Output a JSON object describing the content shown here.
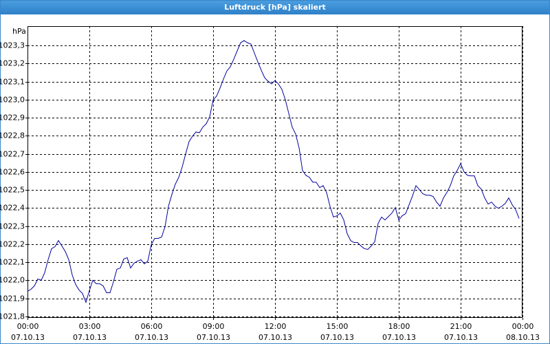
{
  "window_title": "Luftdruck [hPa] skaliert",
  "chart_data": {
    "type": "line",
    "y_label": "hPa",
    "color": "#00009c",
    "grid": true,
    "xlim": [
      0,
      1440
    ],
    "xticks": [
      {
        "value": 0,
        "label": [
          "00:00",
          "07.10.13"
        ]
      },
      {
        "value": 180,
        "label": [
          "03:00",
          "07.10.13"
        ]
      },
      {
        "value": 360,
        "label": [
          "06:00",
          "07.10.13"
        ]
      },
      {
        "value": 540,
        "label": [
          "09:00",
          "07.10.13"
        ]
      },
      {
        "value": 720,
        "label": [
          "12:00",
          "07.10.13"
        ]
      },
      {
        "value": 900,
        "label": [
          "15:00",
          "07.10.13"
        ]
      },
      {
        "value": 1080,
        "label": [
          "18:00",
          "07.10.13"
        ]
      },
      {
        "value": 1260,
        "label": [
          "21:00",
          "07.10.13"
        ]
      },
      {
        "value": 1440,
        "label": [
          "00:00",
          "08.10.13"
        ]
      }
    ],
    "ylim": [
      1021.792,
      1023.407
    ],
    "yticks": [
      {
        "value": 1021.8,
        "label": "1021,8"
      },
      {
        "value": 1021.9,
        "label": "1021,9"
      },
      {
        "value": 1022.0,
        "label": "1022,0"
      },
      {
        "value": 1022.1,
        "label": "1022,1"
      },
      {
        "value": 1022.2,
        "label": "1022,2"
      },
      {
        "value": 1022.3,
        "label": "1022,3"
      },
      {
        "value": 1022.4,
        "label": "1022,4"
      },
      {
        "value": 1022.5,
        "label": "1022,5"
      },
      {
        "value": 1022.6,
        "label": "1022,6"
      },
      {
        "value": 1022.7,
        "label": "1022,7"
      },
      {
        "value": 1022.8,
        "label": "1022,8"
      },
      {
        "value": 1022.9,
        "label": "1022,9"
      },
      {
        "value": 1023.0,
        "label": "1023,0"
      },
      {
        "value": 1023.1,
        "label": "1023,1"
      },
      {
        "value": 1023.2,
        "label": "1023,2"
      },
      {
        "value": 1023.3,
        "label": "1023,3"
      }
    ],
    "x": [
      0,
      10,
      20,
      30,
      40,
      50,
      60,
      70,
      80,
      90,
      100,
      110,
      120,
      130,
      140,
      150,
      160,
      170,
      180,
      190,
      200,
      210,
      220,
      230,
      240,
      250,
      260,
      270,
      280,
      290,
      300,
      310,
      320,
      330,
      340,
      350,
      360,
      370,
      380,
      390,
      400,
      410,
      420,
      430,
      440,
      450,
      460,
      470,
      480,
      490,
      500,
      510,
      520,
      530,
      540,
      550,
      560,
      570,
      580,
      590,
      600,
      610,
      620,
      630,
      640,
      650,
      660,
      670,
      680,
      690,
      700,
      710,
      720,
      730,
      740,
      750,
      760,
      770,
      780,
      790,
      800,
      810,
      820,
      830,
      840,
      850,
      860,
      870,
      880,
      890,
      900,
      910,
      920,
      930,
      940,
      950,
      960,
      970,
      980,
      990,
      1000,
      1010,
      1020,
      1030,
      1040,
      1050,
      1060,
      1070,
      1080,
      1090,
      1100,
      1110,
      1120,
      1130,
      1140,
      1150,
      1160,
      1170,
      1180,
      1190,
      1200,
      1210,
      1220,
      1230,
      1240,
      1250,
      1260,
      1270,
      1280,
      1290,
      1300,
      1310,
      1320,
      1330,
      1340,
      1350,
      1360,
      1370,
      1380,
      1390,
      1400,
      1410,
      1420,
      1430
    ],
    "values": [
      1021.939,
      1021.95,
      1021.969,
      1022.007,
      1022.0,
      1022.042,
      1022.114,
      1022.175,
      1022.186,
      1022.22,
      1022.19,
      1022.159,
      1022.114,
      1022.03,
      1021.977,
      1021.946,
      1021.927,
      1021.878,
      1021.943,
      1022.0,
      1021.981,
      1021.981,
      1021.969,
      1021.931,
      1021.931,
      1021.992,
      1022.061,
      1022.068,
      1022.118,
      1022.125,
      1022.068,
      1022.095,
      1022.106,
      1022.114,
      1022.091,
      1022.106,
      1022.197,
      1022.232,
      1022.232,
      1022.239,
      1022.296,
      1022.41,
      1022.475,
      1022.532,
      1022.57,
      1022.627,
      1022.699,
      1022.768,
      1022.798,
      1022.821,
      1022.817,
      1022.848,
      1022.867,
      1022.905,
      1023.0,
      1023.019,
      1023.064,
      1023.114,
      1023.159,
      1023.182,
      1023.224,
      1023.27,
      1023.315,
      1023.327,
      1023.315,
      1023.308,
      1023.258,
      1023.209,
      1023.163,
      1023.121,
      1023.102,
      1023.087,
      1023.106,
      1023.087,
      1023.057,
      1023.0,
      1022.924,
      1022.848,
      1022.81,
      1022.734,
      1022.608,
      1022.581,
      1022.57,
      1022.543,
      1022.543,
      1022.513,
      1022.524,
      1022.486,
      1022.41,
      1022.35,
      1022.357,
      1022.372,
      1022.334,
      1022.258,
      1022.22,
      1022.209,
      1022.209,
      1022.19,
      1022.175,
      1022.171,
      1022.19,
      1022.213,
      1022.315,
      1022.35,
      1022.334,
      1022.353,
      1022.372,
      1022.403,
      1022.334,
      1022.357,
      1022.369,
      1022.418,
      1022.467,
      1022.524,
      1022.502,
      1022.479,
      1022.471,
      1022.471,
      1022.464,
      1022.433,
      1022.41,
      1022.456,
      1022.486,
      1022.524,
      1022.578,
      1022.608,
      1022.646,
      1022.6,
      1022.581,
      1022.578,
      1022.578,
      1022.524,
      1022.505,
      1022.456,
      1022.422,
      1022.433,
      1022.41,
      1022.399,
      1022.41,
      1022.426,
      1022.456,
      1022.418,
      1022.391,
      1022.342
    ]
  }
}
